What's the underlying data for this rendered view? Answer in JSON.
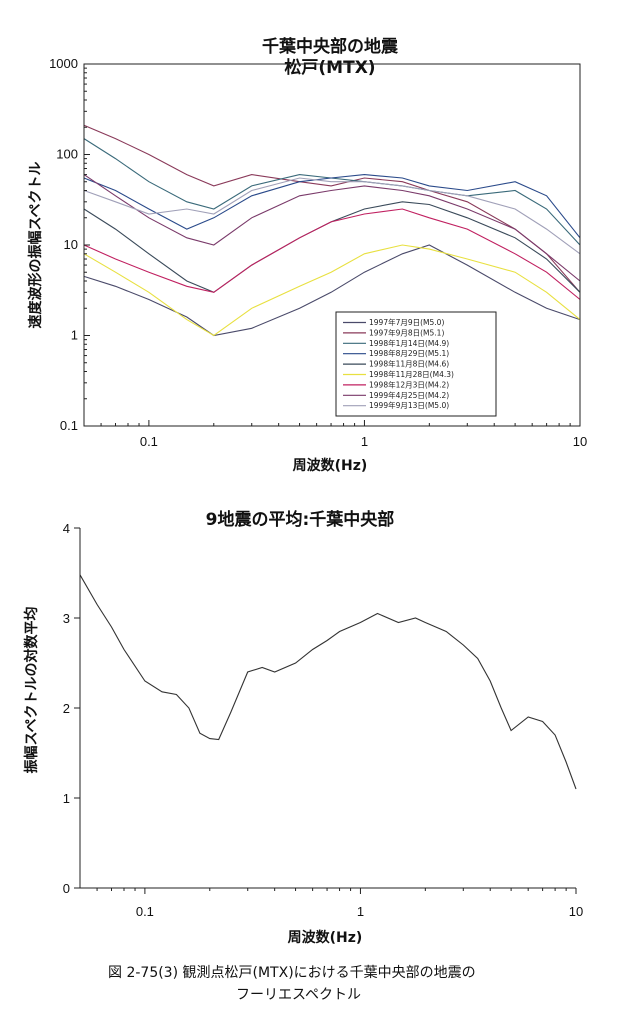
{
  "chart_data": [
    {
      "type": "line",
      "title": "千葉中央部の地震",
      "subtitle": "松戸(MTX)",
      "xlabel": "周波数(Hz)",
      "ylabel": "速度波形の振幅スペクトル",
      "xscale": "log",
      "yscale": "log",
      "xlim": [
        0.05,
        10
      ],
      "ylim": [
        0.1,
        1000
      ],
      "xticks": [
        "0.1",
        "1",
        "10"
      ],
      "yticks": [
        "0.1",
        "1",
        "10",
        "100",
        "1000"
      ],
      "legend_position": "lower-right",
      "grid": false,
      "series": [
        {
          "name": "1997年7月9日(M5.0)",
          "color": "#4a4a6a",
          "x": [
            0.05,
            0.07,
            0.1,
            0.15,
            0.2,
            0.3,
            0.5,
            0.7,
            1,
            1.5,
            2,
            3,
            5,
            7,
            10
          ],
          "y": [
            4.5,
            3.5,
            2.5,
            1.6,
            1.0,
            1.2,
            2.0,
            3.0,
            5.0,
            8.0,
            10,
            6,
            3,
            2,
            1.5
          ]
        },
        {
          "name": "1997年9月8日(M5.1)",
          "color": "#8a3a5a",
          "x": [
            0.05,
            0.07,
            0.1,
            0.15,
            0.2,
            0.3,
            0.5,
            0.7,
            1,
            1.5,
            2,
            3,
            5,
            7,
            10
          ],
          "y": [
            210,
            150,
            100,
            60,
            45,
            60,
            50,
            45,
            55,
            50,
            40,
            30,
            15,
            8,
            3
          ]
        },
        {
          "name": "1998年1月14日(M4.9)",
          "color": "#3a6a7a",
          "x": [
            0.05,
            0.07,
            0.1,
            0.15,
            0.2,
            0.3,
            0.5,
            0.7,
            1,
            1.5,
            2,
            3,
            5,
            7,
            10
          ],
          "y": [
            150,
            90,
            50,
            30,
            25,
            45,
            60,
            55,
            50,
            45,
            40,
            35,
            40,
            25,
            10
          ]
        },
        {
          "name": "1998年8月29日(M5.1)",
          "color": "#2a4a8a",
          "x": [
            0.05,
            0.07,
            0.1,
            0.15,
            0.2,
            0.3,
            0.5,
            0.7,
            1,
            1.5,
            2,
            3,
            5,
            7,
            10
          ],
          "y": [
            55,
            40,
            25,
            15,
            20,
            35,
            50,
            55,
            60,
            55,
            45,
            40,
            50,
            35,
            12
          ]
        },
        {
          "name": "1998年11月8日(M4.6)",
          "color": "#3a4a5a",
          "x": [
            0.05,
            0.07,
            0.1,
            0.15,
            0.2,
            0.3,
            0.5,
            0.7,
            1,
            1.5,
            2,
            3,
            5,
            7,
            10
          ],
          "y": [
            25,
            15,
            8,
            4,
            3,
            6,
            12,
            18,
            25,
            30,
            28,
            20,
            12,
            7,
            3
          ]
        },
        {
          "name": "1998年11月28日(M4.3)",
          "color": "#e8e040",
          "x": [
            0.05,
            0.07,
            0.1,
            0.15,
            0.2,
            0.3,
            0.5,
            0.7,
            1,
            1.5,
            2,
            3,
            5,
            7,
            10
          ],
          "y": [
            8,
            5,
            3,
            1.5,
            1.0,
            2.0,
            3.5,
            5,
            8,
            10,
            9,
            7,
            5,
            3,
            1.5
          ]
        },
        {
          "name": "1998年12月3日(M4.2)",
          "color": "#c02060",
          "x": [
            0.05,
            0.07,
            0.1,
            0.15,
            0.2,
            0.3,
            0.5,
            0.7,
            1,
            1.5,
            2,
            3,
            5,
            7,
            10
          ],
          "y": [
            10,
            7,
            5,
            3.5,
            3,
            6,
            12,
            18,
            22,
            25,
            20,
            15,
            8,
            5,
            2.5
          ]
        },
        {
          "name": "1999年4月25日(M4.2)",
          "color": "#7a3a6a",
          "x": [
            0.05,
            0.07,
            0.1,
            0.15,
            0.2,
            0.3,
            0.5,
            0.7,
            1,
            1.5,
            2,
            3,
            5,
            7,
            10
          ],
          "y": [
            60,
            35,
            20,
            12,
            10,
            20,
            35,
            40,
            45,
            40,
            35,
            25,
            15,
            8,
            4
          ]
        },
        {
          "name": "1999年9月13日(M5.0)",
          "color": "#a0a0b8",
          "x": [
            0.05,
            0.07,
            0.1,
            0.15,
            0.2,
            0.3,
            0.5,
            0.7,
            1,
            1.5,
            2,
            3,
            5,
            7,
            10
          ],
          "y": [
            40,
            30,
            22,
            25,
            22,
            40,
            55,
            50,
            50,
            45,
            40,
            35,
            25,
            15,
            8
          ]
        }
      ]
    },
    {
      "type": "line",
      "title": "9地震の平均:千葉中央部",
      "xlabel": "周波数(Hz)",
      "ylabel": "振幅スペクトルの対数平均",
      "xscale": "log",
      "xlim": [
        0.05,
        10
      ],
      "ylim": [
        0,
        4
      ],
      "xticks": [
        "0.1",
        "1",
        "10"
      ],
      "yticks": [
        "0",
        "1",
        "2",
        "3",
        "4"
      ],
      "grid": false,
      "series": [
        {
          "color": "#333333",
          "x": [
            0.05,
            0.06,
            0.07,
            0.08,
            0.1,
            0.12,
            0.14,
            0.16,
            0.18,
            0.2,
            0.22,
            0.25,
            0.3,
            0.35,
            0.4,
            0.5,
            0.6,
            0.7,
            0.8,
            1.0,
            1.2,
            1.5,
            1.8,
            2.0,
            2.5,
            3.0,
            3.5,
            4.0,
            4.5,
            5.0,
            6.0,
            7.0,
            8.0,
            9.0,
            10.0
          ],
          "y": [
            3.48,
            3.15,
            2.9,
            2.65,
            2.3,
            2.18,
            2.15,
            2.0,
            1.72,
            1.66,
            1.65,
            1.95,
            2.4,
            2.45,
            2.4,
            2.5,
            2.65,
            2.75,
            2.85,
            2.95,
            3.05,
            2.95,
            3.0,
            2.95,
            2.85,
            2.7,
            2.55,
            2.3,
            2.0,
            1.75,
            1.9,
            1.85,
            1.7,
            1.4,
            1.1
          ]
        }
      ]
    }
  ],
  "caption": {
    "line1": "図 2-75(3)  観測点松戸(MTX)における千葉中央部の地震の",
    "line2": "フーリエスペクトル"
  }
}
